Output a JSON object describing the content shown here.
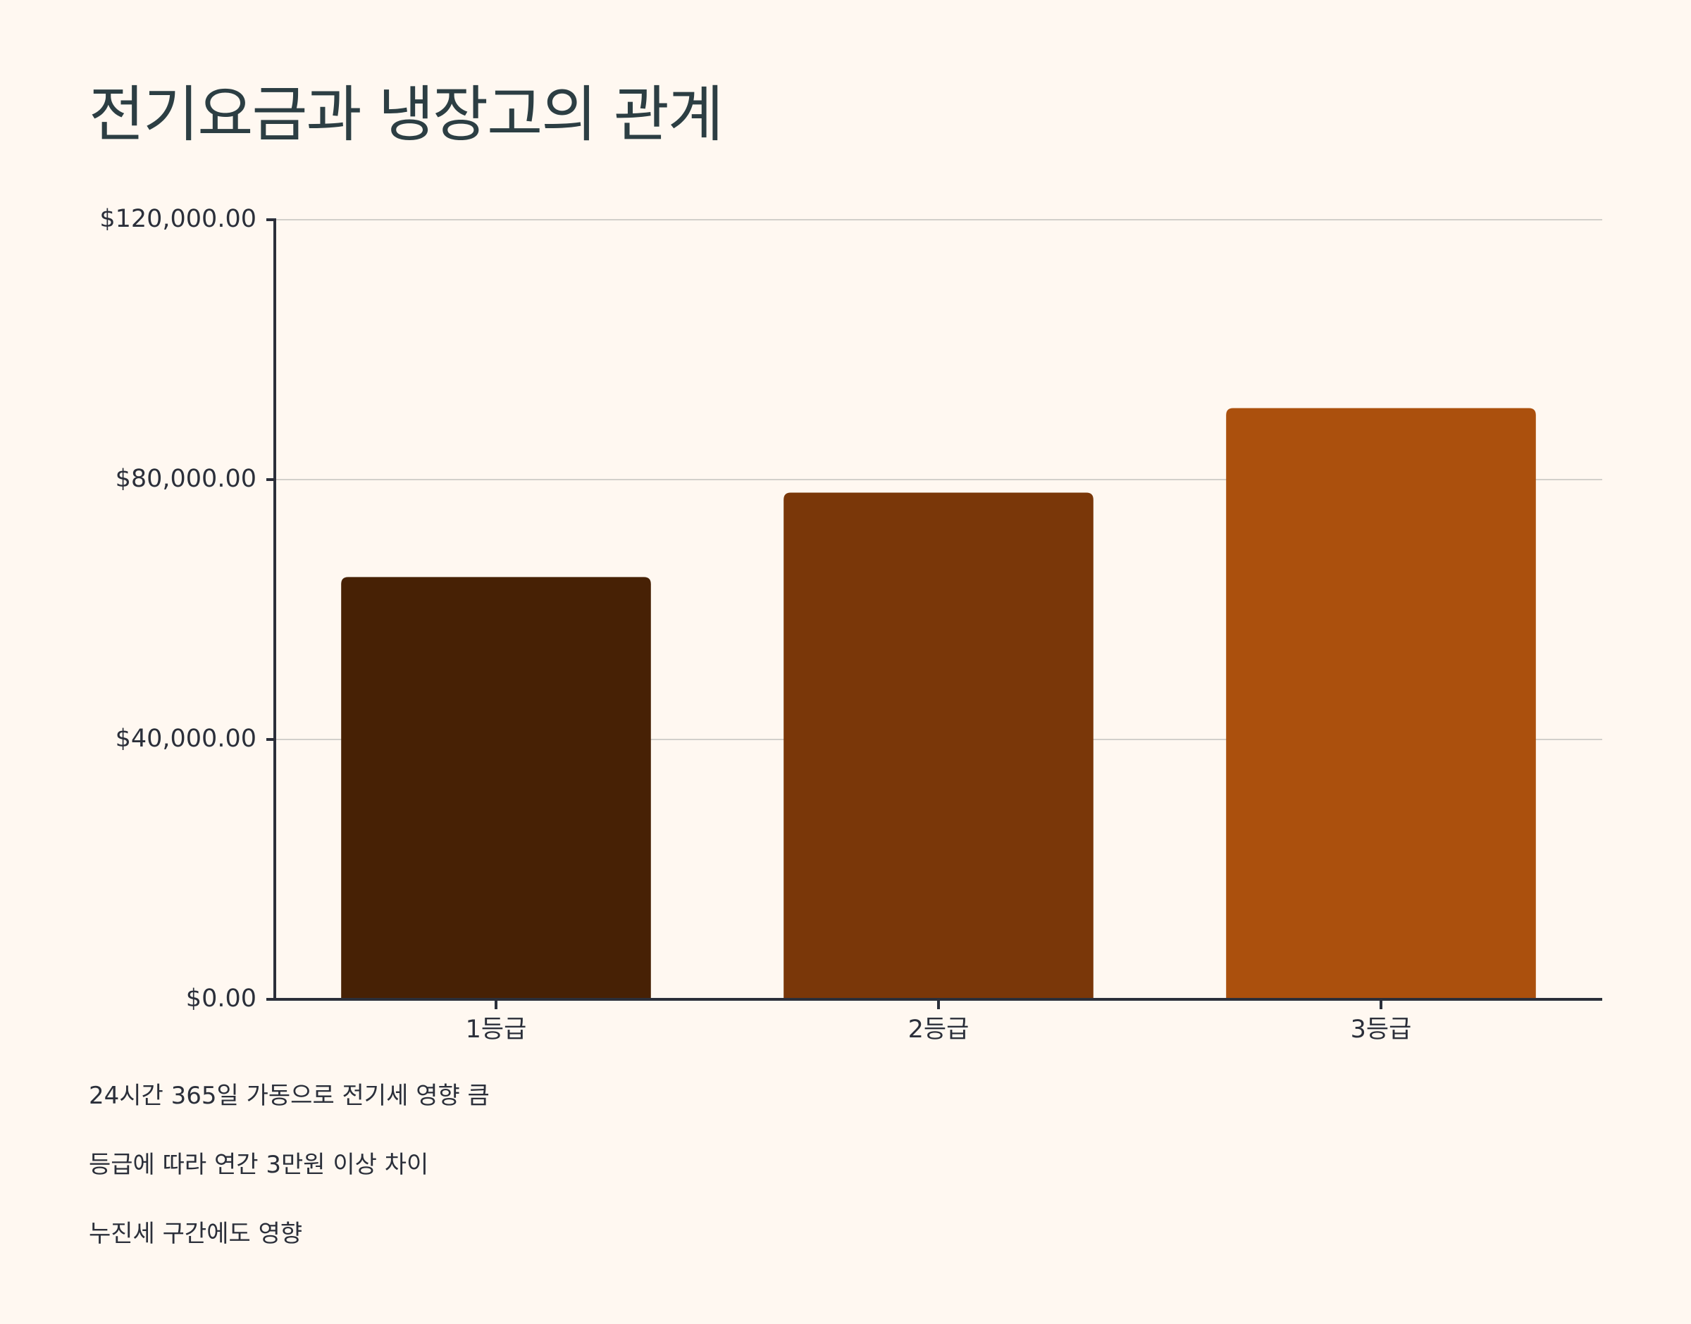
{
  "chart_data": {
    "type": "bar",
    "title": "전기요금과 냉장고의 관계",
    "categories": [
      "1등급",
      "2등급",
      "3등급"
    ],
    "values": [
      65000,
      78000,
      91000
    ],
    "colors": [
      "#472105",
      "#7a3709",
      "#ab500d"
    ],
    "ylim": [
      0,
      120000
    ],
    "yticks": [
      0,
      40000,
      80000,
      120000
    ],
    "ytick_labels": [
      "$0.00",
      "$40,000.00",
      "$80,000.00",
      "$120,000.00"
    ],
    "xlabel": "",
    "ylabel": "",
    "grid": true,
    "grid_color": "#d2d0cb",
    "axis_color": "#2b2f3a"
  },
  "notes": [
    "24시간 365일 가동으로 전기세 영향 큼",
    "등급에 따라 연간 3만원 이상 차이",
    "누진세 구간에도 영향"
  ]
}
